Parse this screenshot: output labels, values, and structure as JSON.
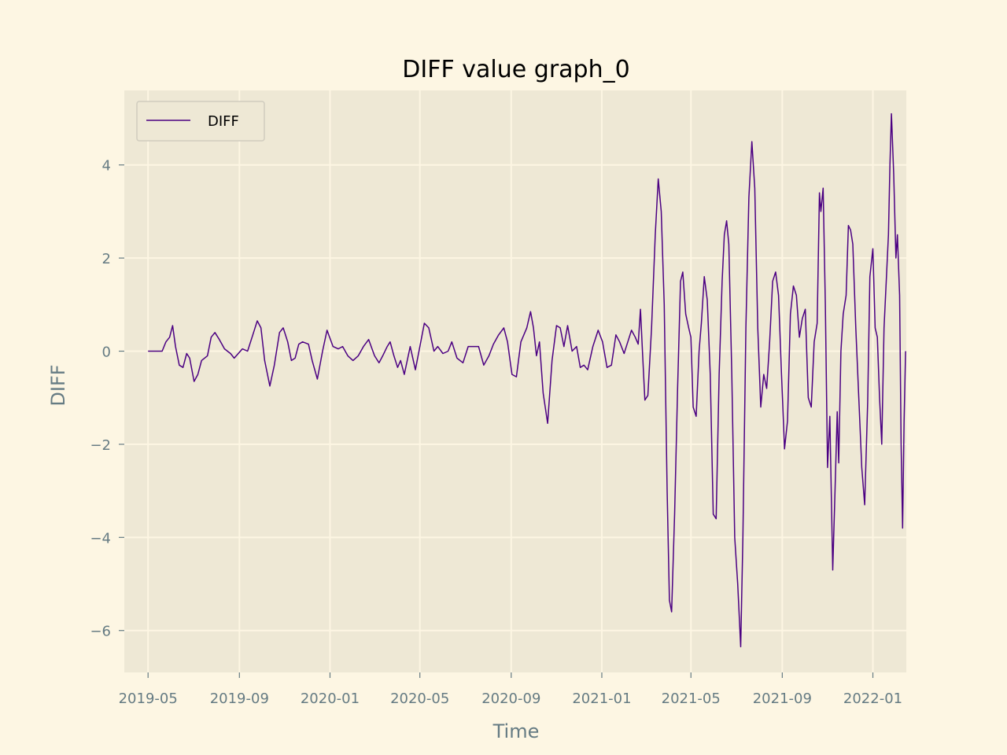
{
  "chart_data": {
    "type": "line",
    "title": "DIFF value graph_0",
    "xlabel": "Time",
    "ylabel": "DIFF",
    "ylim": [
      -6.9,
      5.6
    ],
    "xlim": [
      "2019-03-30",
      "2022-02-15"
    ],
    "grid": true,
    "legend_position": "top-left",
    "x_ticks": [
      "2019-05",
      "2019-09",
      "2020-01",
      "2020-05",
      "2020-09",
      "2021-01",
      "2021-05",
      "2021-09",
      "2022-01"
    ],
    "y_ticks": [
      4,
      2,
      0,
      -2,
      -4,
      -6
    ],
    "y_tick_labels": [
      "4",
      "2",
      "0",
      "−2",
      "−4",
      "−6"
    ],
    "series": [
      {
        "name": "DIFF",
        "color": "#4b0082",
        "points": [
          [
            "2019-05-01",
            0
          ],
          [
            "2019-05-10",
            0
          ],
          [
            "2019-05-20",
            0
          ],
          [
            "2019-05-25",
            0.2
          ],
          [
            "2019-05-30",
            0.3
          ],
          [
            "2019-06-03",
            0.55
          ],
          [
            "2019-06-07",
            0.1
          ],
          [
            "2019-06-12",
            -0.3
          ],
          [
            "2019-06-17",
            -0.35
          ],
          [
            "2019-06-22",
            -0.05
          ],
          [
            "2019-06-26",
            -0.15
          ],
          [
            "2019-07-02",
            -0.65
          ],
          [
            "2019-07-07",
            -0.5
          ],
          [
            "2019-07-12",
            -0.2
          ],
          [
            "2019-07-20",
            -0.1
          ],
          [
            "2019-07-25",
            0.3
          ],
          [
            "2019-07-30",
            0.4
          ],
          [
            "2019-08-05",
            0.25
          ],
          [
            "2019-08-12",
            0.05
          ],
          [
            "2019-08-20",
            -0.05
          ],
          [
            "2019-08-25",
            -0.15
          ],
          [
            "2019-09-05",
            0.05
          ],
          [
            "2019-09-12",
            0
          ],
          [
            "2019-09-20",
            0.4
          ],
          [
            "2019-09-25",
            0.65
          ],
          [
            "2019-09-30",
            0.5
          ],
          [
            "2019-10-05",
            -0.2
          ],
          [
            "2019-10-12",
            -0.75
          ],
          [
            "2019-10-18",
            -0.3
          ],
          [
            "2019-10-25",
            0.4
          ],
          [
            "2019-10-30",
            0.5
          ],
          [
            "2019-11-05",
            0.2
          ],
          [
            "2019-11-10",
            -0.2
          ],
          [
            "2019-11-15",
            -0.15
          ],
          [
            "2019-11-20",
            0.15
          ],
          [
            "2019-11-25",
            0.2
          ],
          [
            "2019-12-03",
            0.15
          ],
          [
            "2019-12-08",
            -0.2
          ],
          [
            "2019-12-15",
            -0.6
          ],
          [
            "2019-12-22",
            0
          ],
          [
            "2019-12-28",
            0.45
          ],
          [
            "2020-01-05",
            0.1
          ],
          [
            "2020-01-12",
            0.05
          ],
          [
            "2020-01-18",
            0.1
          ],
          [
            "2020-01-25",
            -0.1
          ],
          [
            "2020-02-01",
            -0.2
          ],
          [
            "2020-02-08",
            -0.1
          ],
          [
            "2020-02-15",
            0.1
          ],
          [
            "2020-02-22",
            0.25
          ],
          [
            "2020-03-01",
            -0.1
          ],
          [
            "2020-03-07",
            -0.25
          ],
          [
            "2020-03-12",
            -0.1
          ],
          [
            "2020-03-18",
            0.1
          ],
          [
            "2020-03-22",
            0.2
          ],
          [
            "2020-03-27",
            -0.1
          ],
          [
            "2020-04-01",
            -0.35
          ],
          [
            "2020-04-05",
            -0.2
          ],
          [
            "2020-04-10",
            -0.5
          ],
          [
            "2020-04-18",
            0.1
          ],
          [
            "2020-04-25",
            -0.4
          ],
          [
            "2020-05-01",
            0.1
          ],
          [
            "2020-05-07",
            0.6
          ],
          [
            "2020-05-13",
            0.5
          ],
          [
            "2020-05-20",
            0
          ],
          [
            "2020-05-25",
            0.1
          ],
          [
            "2020-06-01",
            -0.05
          ],
          [
            "2020-06-08",
            0
          ],
          [
            "2020-06-13",
            0.2
          ],
          [
            "2020-06-20",
            -0.15
          ],
          [
            "2020-06-28",
            -0.25
          ],
          [
            "2020-07-05",
            0.1
          ],
          [
            "2020-07-12",
            0.1
          ],
          [
            "2020-07-19",
            0.1
          ],
          [
            "2020-07-26",
            -0.3
          ],
          [
            "2020-08-02",
            -0.1
          ],
          [
            "2020-08-08",
            0.15
          ],
          [
            "2020-08-15",
            0.35
          ],
          [
            "2020-08-22",
            0.5
          ],
          [
            "2020-08-27",
            0.2
          ],
          [
            "2020-09-02",
            -0.5
          ],
          [
            "2020-09-08",
            -0.55
          ],
          [
            "2020-09-14",
            0.2
          ],
          [
            "2020-09-22",
            0.5
          ],
          [
            "2020-09-27",
            0.85
          ],
          [
            "2020-10-01",
            0.5
          ],
          [
            "2020-10-05",
            -0.1
          ],
          [
            "2020-10-09",
            0.2
          ],
          [
            "2020-10-14",
            -0.9
          ],
          [
            "2020-10-20",
            -1.55
          ],
          [
            "2020-10-26",
            -0.2
          ],
          [
            "2020-11-01",
            0.55
          ],
          [
            "2020-11-06",
            0.5
          ],
          [
            "2020-11-11",
            0.1
          ],
          [
            "2020-11-16",
            0.55
          ],
          [
            "2020-11-22",
            0
          ],
          [
            "2020-11-28",
            0.1
          ],
          [
            "2020-12-03",
            -0.35
          ],
          [
            "2020-12-08",
            -0.3
          ],
          [
            "2020-12-13",
            -0.4
          ],
          [
            "2020-12-20",
            0.1
          ],
          [
            "2020-12-27",
            0.45
          ],
          [
            "2021-01-02",
            0.2
          ],
          [
            "2021-01-08",
            -0.35
          ],
          [
            "2021-01-14",
            -0.3
          ],
          [
            "2021-01-20",
            0.35
          ],
          [
            "2021-01-25",
            0.2
          ],
          [
            "2021-01-31",
            -0.05
          ],
          [
            "2021-02-05",
            0.2
          ],
          [
            "2021-02-10",
            0.45
          ],
          [
            "2021-02-15",
            0.3
          ],
          [
            "2021-02-19",
            0.15
          ],
          [
            "2021-02-22",
            0.9
          ],
          [
            "2021-02-25",
            -0.1
          ],
          [
            "2021-02-28",
            -1.05
          ],
          [
            "2021-03-04",
            -0.95
          ],
          [
            "2021-03-09",
            0.5
          ],
          [
            "2021-03-14",
            2.5
          ],
          [
            "2021-03-18",
            3.7
          ],
          [
            "2021-03-22",
            3.0
          ],
          [
            "2021-03-26",
            1.0
          ],
          [
            "2021-03-30",
            -3.0
          ],
          [
            "2021-04-02",
            -5.35
          ],
          [
            "2021-04-05",
            -5.6
          ],
          [
            "2021-04-09",
            -3.5
          ],
          [
            "2021-04-13",
            -0.8
          ],
          [
            "2021-04-17",
            1.5
          ],
          [
            "2021-04-20",
            1.7
          ],
          [
            "2021-04-24",
            0.8
          ],
          [
            "2021-04-28",
            0.5
          ],
          [
            "2021-05-01",
            0.3
          ],
          [
            "2021-05-04",
            -1.2
          ],
          [
            "2021-05-08",
            -1.4
          ],
          [
            "2021-05-12",
            0
          ],
          [
            "2021-05-15",
            0.6
          ],
          [
            "2021-05-19",
            1.6
          ],
          [
            "2021-05-23",
            1.1
          ],
          [
            "2021-05-27",
            -0.5
          ],
          [
            "2021-05-31",
            -3.5
          ],
          [
            "2021-06-04",
            -3.6
          ],
          [
            "2021-06-08",
            -0.5
          ],
          [
            "2021-06-12",
            1.5
          ],
          [
            "2021-06-15",
            2.5
          ],
          [
            "2021-06-18",
            2.8
          ],
          [
            "2021-06-21",
            2.3
          ],
          [
            "2021-06-25",
            -0.5
          ],
          [
            "2021-06-29",
            -4.0
          ],
          [
            "2021-07-03",
            -5.0
          ],
          [
            "2021-07-07",
            -6.35
          ],
          [
            "2021-07-10",
            -4.0
          ],
          [
            "2021-07-14",
            0.5
          ],
          [
            "2021-07-18",
            3.3
          ],
          [
            "2021-07-22",
            4.5
          ],
          [
            "2021-07-26",
            3.5
          ],
          [
            "2021-07-30",
            0.5
          ],
          [
            "2021-08-03",
            -1.2
          ],
          [
            "2021-08-07",
            -0.5
          ],
          [
            "2021-08-11",
            -0.8
          ],
          [
            "2021-08-15",
            0.2
          ],
          [
            "2021-08-19",
            1.5
          ],
          [
            "2021-08-23",
            1.7
          ],
          [
            "2021-08-27",
            1.2
          ],
          [
            "2021-08-31",
            -0.5
          ],
          [
            "2021-09-04",
            -2.1
          ],
          [
            "2021-09-08",
            -1.5
          ],
          [
            "2021-09-12",
            0.8
          ],
          [
            "2021-09-16",
            1.4
          ],
          [
            "2021-09-20",
            1.2
          ],
          [
            "2021-09-24",
            0.3
          ],
          [
            "2021-09-28",
            0.7
          ],
          [
            "2021-10-02",
            0.9
          ],
          [
            "2021-10-06",
            -1.0
          ],
          [
            "2021-10-10",
            -1.2
          ],
          [
            "2021-10-14",
            0.2
          ],
          [
            "2021-10-18",
            0.6
          ],
          [
            "2021-10-21",
            3.4
          ],
          [
            "2021-10-23",
            3.0
          ],
          [
            "2021-10-26",
            3.5
          ],
          [
            "2021-10-29",
            1.0
          ],
          [
            "2021-11-01",
            -2.5
          ],
          [
            "2021-11-04",
            -1.4
          ],
          [
            "2021-11-08",
            -4.7
          ],
          [
            "2021-11-11",
            -3.0
          ],
          [
            "2021-11-14",
            -1.3
          ],
          [
            "2021-11-16",
            -2.4
          ],
          [
            "2021-11-19",
            0
          ],
          [
            "2021-11-22",
            0.8
          ],
          [
            "2021-11-26",
            1.2
          ],
          [
            "2021-11-29",
            2.7
          ],
          [
            "2021-12-02",
            2.6
          ],
          [
            "2021-12-05",
            2.3
          ],
          [
            "2021-12-09",
            0.5
          ],
          [
            "2021-12-13",
            -1.0
          ],
          [
            "2021-12-17",
            -2.5
          ],
          [
            "2021-12-21",
            -3.3
          ],
          [
            "2021-12-25",
            -1.1
          ],
          [
            "2021-12-28",
            1.6
          ],
          [
            "2022-01-01",
            2.2
          ],
          [
            "2022-01-04",
            0.5
          ],
          [
            "2022-01-07",
            0.3
          ],
          [
            "2022-01-10",
            -1.0
          ],
          [
            "2022-01-13",
            -2.0
          ],
          [
            "2022-01-16",
            0.5
          ],
          [
            "2022-01-19",
            1.5
          ],
          [
            "2022-01-22",
            2.5
          ],
          [
            "2022-01-24",
            4.0
          ],
          [
            "2022-01-26",
            5.1
          ],
          [
            "2022-01-29",
            3.8
          ],
          [
            "2022-02-01",
            2.0
          ],
          [
            "2022-02-03",
            2.5
          ],
          [
            "2022-02-06",
            1.2
          ],
          [
            "2022-02-08",
            -2.0
          ],
          [
            "2022-02-10",
            -3.8
          ],
          [
            "2022-02-12",
            -1.5
          ],
          [
            "2022-02-14",
            0
          ]
        ]
      }
    ]
  },
  "colors": {
    "figure_background": "#fdf6e3",
    "axes_background": "#eee8d5",
    "grid": "#fdf6e3",
    "text": "#657b83",
    "line": "#4b0082"
  }
}
